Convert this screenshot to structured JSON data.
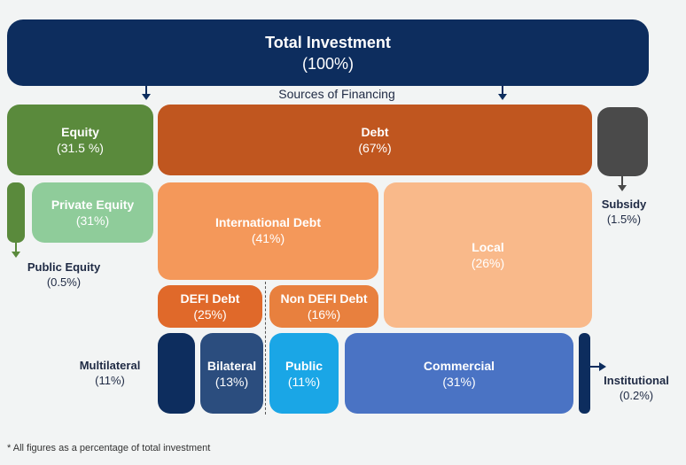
{
  "total": {
    "title": "Total Investment",
    "value": "(100%)"
  },
  "caption": "Sources of Financing",
  "equity": {
    "title": "Equity",
    "value": "(31.5 %)"
  },
  "debt": {
    "title": "Debt",
    "value": "(67%)"
  },
  "subsidy": {
    "title": "Subsidy",
    "value": "(1.5%)"
  },
  "private_equity": {
    "title": "Private Equity",
    "value": "(31%)"
  },
  "public_equity": {
    "title": "Public Equity",
    "value": "(0.5%)"
  },
  "international_debt": {
    "title": "International Debt",
    "value": "(41%)"
  },
  "local": {
    "title": "Local",
    "value": "(26%)"
  },
  "defi_debt": {
    "title": "DEFI Debt",
    "value": "(25%)"
  },
  "non_defi_debt": {
    "title": "Non DEFI Debt",
    "value": "(16%)"
  },
  "multilateral": {
    "title": "Multilateral",
    "value": "(11%)"
  },
  "bilateral": {
    "title": "Bilateral",
    "value": "(13%)"
  },
  "public": {
    "title": "Public",
    "value": "(11%)"
  },
  "commercial": {
    "title": "Commercial",
    "value": "(31%)"
  },
  "institutional": {
    "title": "Institutional",
    "value": "(0.2%)"
  },
  "footnote": "* All figures as a percentage of total investment",
  "colors": {
    "navy": "#0d2d5e",
    "equity_green": "#5a8a3c",
    "light_green": "#8fcc9a",
    "debt_orange": "#c0561f",
    "intl_orange": "#f4985a",
    "local_peach": "#f9b98a",
    "defi_orange": "#e0692a",
    "non_defi_orange": "#e8803e",
    "subsidy_gray": "#4a4a4a",
    "bilateral_blue": "#2b4d7e",
    "public_cyan": "#1aa6e6",
    "commercial_blue": "#4a73c4"
  }
}
